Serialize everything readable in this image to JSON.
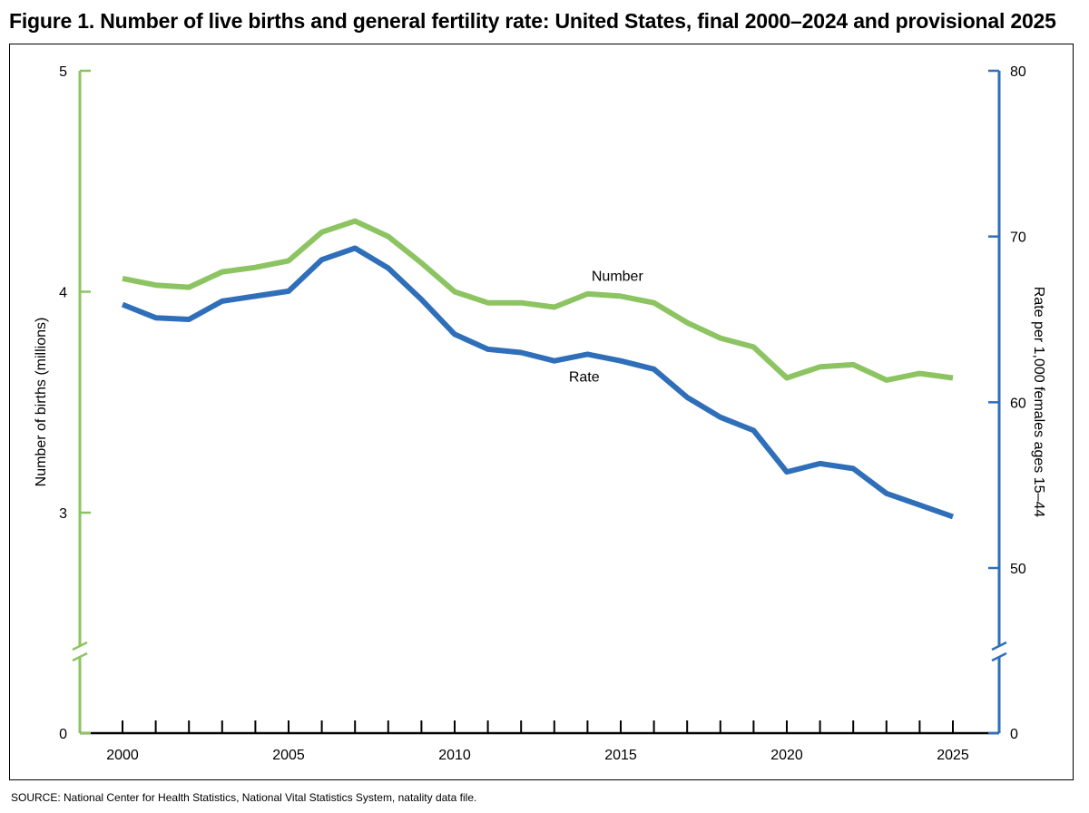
{
  "chart_data": {
    "type": "line",
    "title": "Figure 1. Number of live births and general fertility rate: United States, final 2000–2024 and provisional 2025",
    "source": "SOURCE: National Center for Health Statistics, National Vital Statistics System, natality data file.",
    "x": [
      2000,
      2001,
      2002,
      2003,
      2004,
      2005,
      2006,
      2007,
      2008,
      2009,
      2010,
      2011,
      2012,
      2013,
      2014,
      2015,
      2016,
      2017,
      2018,
      2019,
      2020,
      2021,
      2022,
      2023,
      2024,
      2025
    ],
    "xticks": [
      "2000",
      "2005",
      "2010",
      "2015",
      "2020",
      "2025"
    ],
    "xlim": [
      1999,
      2026
    ],
    "left_axis": {
      "label": "Number of births (millions)",
      "ticks": [
        "0",
        "3",
        "4",
        "5"
      ],
      "lim": [
        0,
        5
      ],
      "break": true,
      "color": "#8dc462"
    },
    "right_axis": {
      "label": "Rate per 1,000 females ages 15–44",
      "ticks": [
        "0",
        "50",
        "60",
        "70",
        "80"
      ],
      "lim": [
        0,
        80
      ],
      "break": true,
      "color": "#2f6fba"
    },
    "series": [
      {
        "name": "Number",
        "axis": "left",
        "color": "#8dc462",
        "values": [
          4.06,
          4.03,
          4.02,
          4.09,
          4.11,
          4.14,
          4.27,
          4.32,
          4.25,
          4.13,
          4.0,
          3.95,
          3.95,
          3.93,
          3.99,
          3.98,
          3.95,
          3.86,
          3.79,
          3.75,
          3.61,
          3.66,
          3.67,
          3.6,
          3.63,
          3.61
        ]
      },
      {
        "name": "Rate",
        "axis": "right",
        "color": "#2f6fba",
        "values": [
          65.9,
          65.1,
          65.0,
          66.1,
          66.4,
          66.7,
          68.6,
          69.3,
          68.1,
          66.2,
          64.1,
          63.2,
          63.0,
          62.5,
          62.9,
          62.5,
          62.0,
          60.3,
          59.1,
          58.3,
          55.8,
          56.3,
          56.0,
          54.5,
          53.8,
          53.1
        ]
      }
    ]
  }
}
